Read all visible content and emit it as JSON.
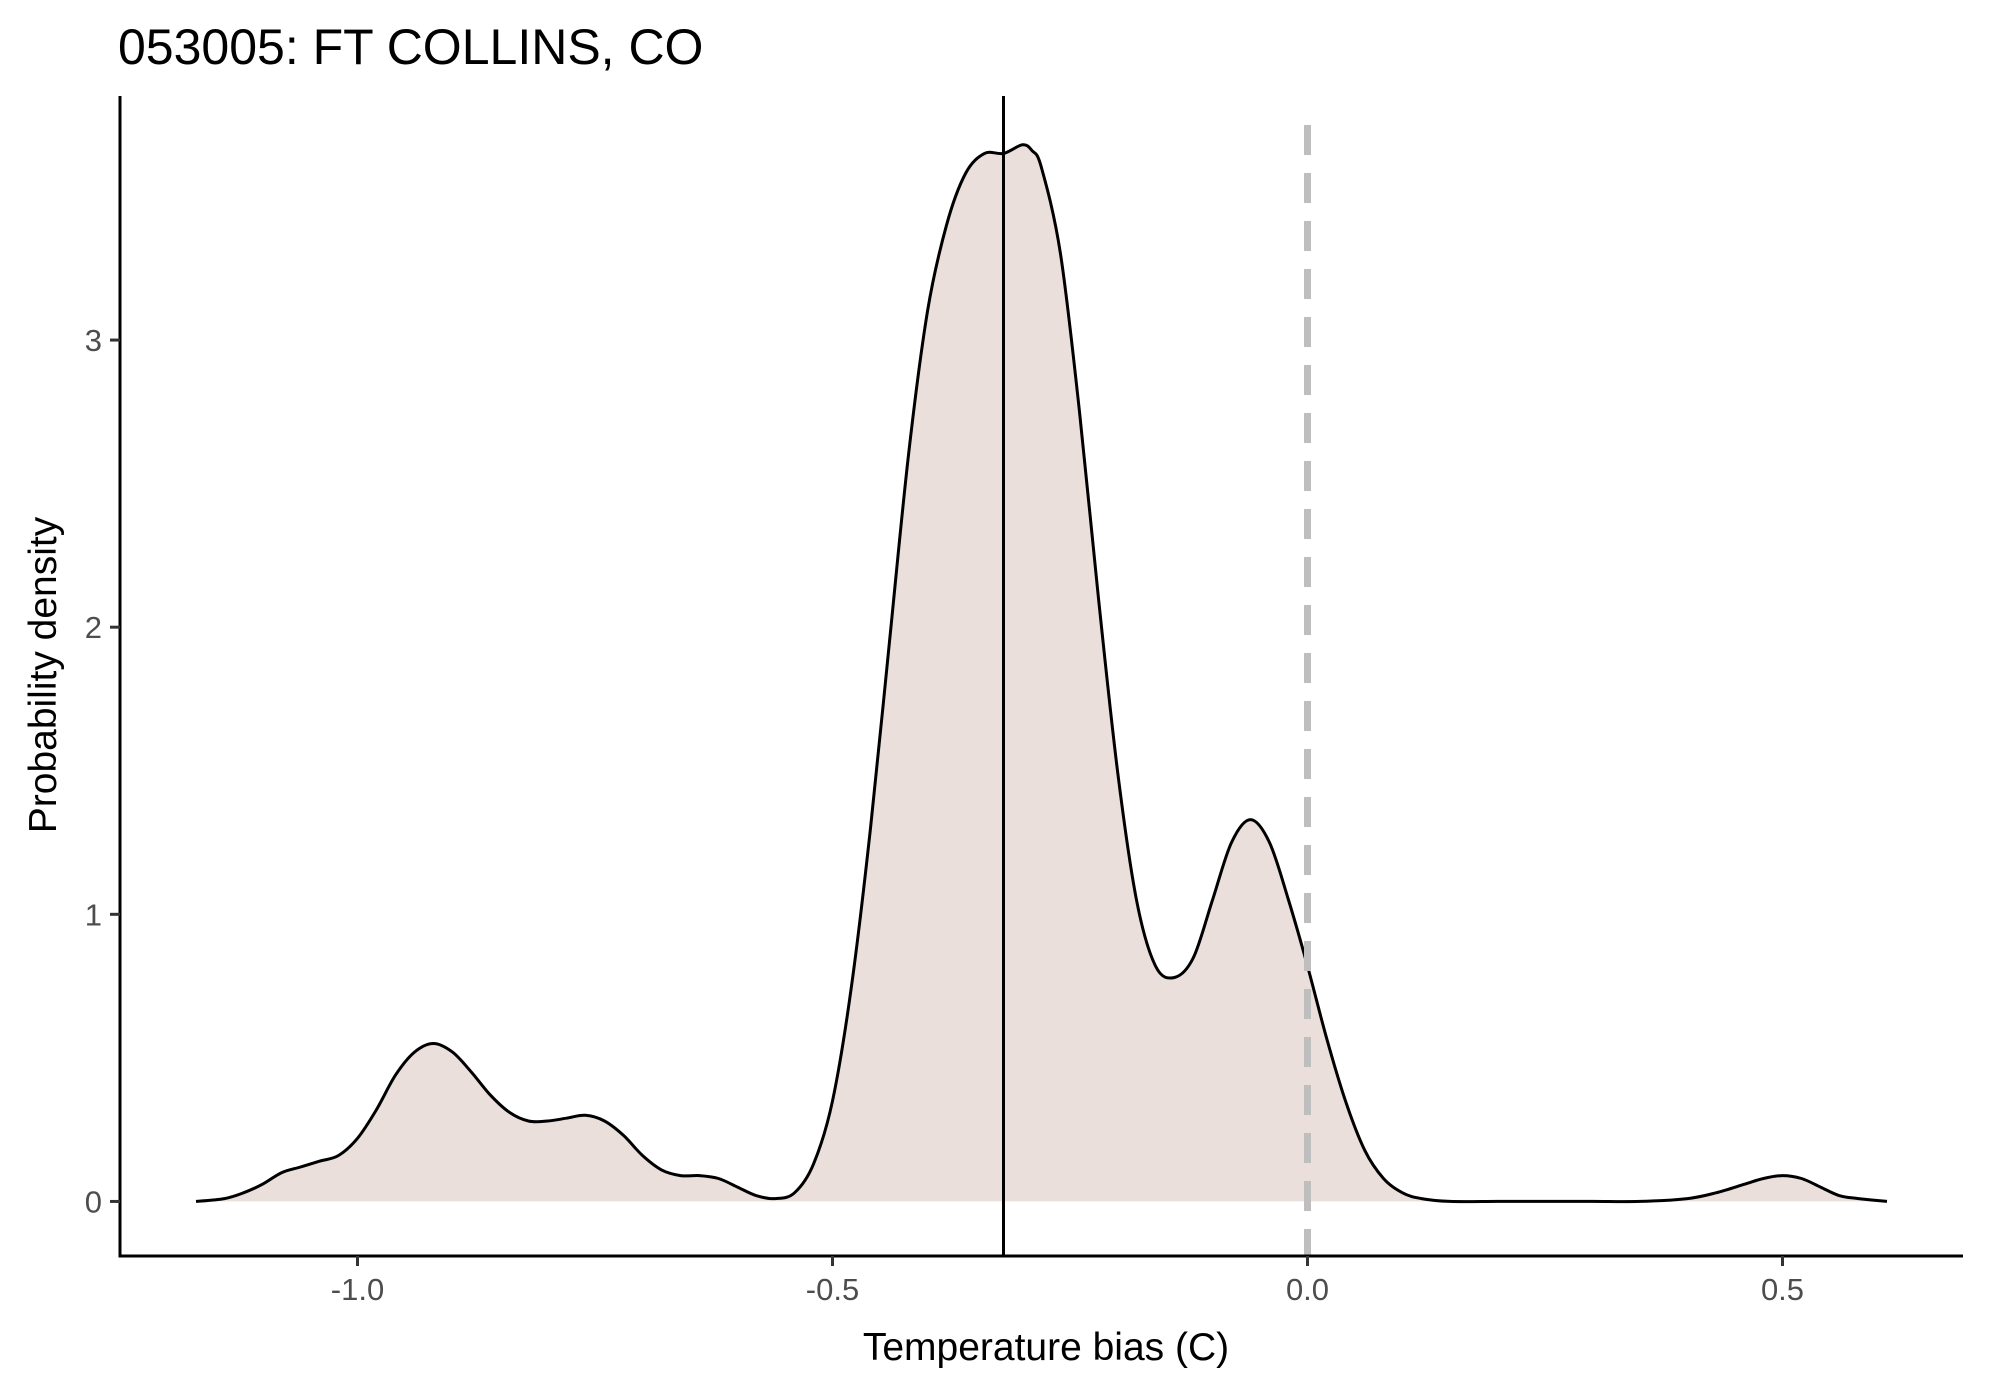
{
  "chart_data": {
    "type": "area",
    "title": "053005: FT COLLINS, CO",
    "xlabel": "Temperature bias (C)",
    "ylabel": "Probability density",
    "xlim": [
      -1.25,
      0.69
    ],
    "ylim": [
      -0.19,
      3.85
    ],
    "x_ticks": [
      {
        "value": -1.0,
        "label": "-1.0"
      },
      {
        "value": -0.5,
        "label": "-0.5"
      },
      {
        "value": 0.0,
        "label": "0.0"
      },
      {
        "value": 0.5,
        "label": "0.5"
      }
    ],
    "y_ticks": [
      {
        "value": 0,
        "label": "0"
      },
      {
        "value": 1,
        "label": "1"
      },
      {
        "value": 2,
        "label": "2"
      },
      {
        "value": 3,
        "label": "3"
      }
    ],
    "grid": false,
    "fill_color": "#ebdfdc",
    "line_color": "#000000",
    "reference_lines": [
      {
        "x": -0.32,
        "style": "solid",
        "color": "#000000"
      },
      {
        "x": 0.0,
        "style": "dashed",
        "color": "#bebebe"
      }
    ],
    "series": [
      {
        "x": [
          -1.17,
          -1.14,
          -1.12,
          -1.1,
          -1.08,
          -1.06,
          -1.04,
          -1.02,
          -1.0,
          -0.98,
          -0.96,
          -0.94,
          -0.92,
          -0.9,
          -0.88,
          -0.86,
          -0.84,
          -0.82,
          -0.8,
          -0.78,
          -0.76,
          -0.74,
          -0.72,
          -0.7,
          -0.68,
          -0.66,
          -0.64,
          -0.62,
          -0.6,
          -0.58,
          -0.56,
          -0.54,
          -0.52,
          -0.5,
          -0.48,
          -0.46,
          -0.44,
          -0.42,
          -0.4,
          -0.38,
          -0.36,
          -0.34,
          -0.32,
          -0.3,
          -0.29,
          -0.28,
          -0.26,
          -0.24,
          -0.22,
          -0.2,
          -0.18,
          -0.16,
          -0.14,
          -0.12,
          -0.1,
          -0.08,
          -0.06,
          -0.04,
          -0.02,
          0.0,
          0.02,
          0.04,
          0.06,
          0.08,
          0.1,
          0.12,
          0.15,
          0.2,
          0.25,
          0.3,
          0.35,
          0.4,
          0.43,
          0.46,
          0.48,
          0.5,
          0.52,
          0.54,
          0.56,
          0.58,
          0.61
        ],
        "y": [
          0.0,
          0.01,
          0.03,
          0.06,
          0.1,
          0.12,
          0.14,
          0.16,
          0.22,
          0.32,
          0.44,
          0.52,
          0.55,
          0.52,
          0.45,
          0.37,
          0.31,
          0.28,
          0.28,
          0.29,
          0.3,
          0.28,
          0.23,
          0.16,
          0.11,
          0.09,
          0.09,
          0.08,
          0.05,
          0.02,
          0.01,
          0.03,
          0.13,
          0.35,
          0.75,
          1.3,
          1.95,
          2.6,
          3.1,
          3.4,
          3.58,
          3.65,
          3.65,
          3.68,
          3.66,
          3.6,
          3.3,
          2.75,
          2.1,
          1.5,
          1.05,
          0.82,
          0.78,
          0.85,
          1.05,
          1.25,
          1.33,
          1.25,
          1.05,
          0.82,
          0.57,
          0.35,
          0.18,
          0.08,
          0.03,
          0.01,
          0.0,
          0.0,
          0.0,
          0.0,
          0.0,
          0.01,
          0.03,
          0.06,
          0.08,
          0.09,
          0.08,
          0.05,
          0.02,
          0.01,
          0.0
        ]
      }
    ]
  }
}
